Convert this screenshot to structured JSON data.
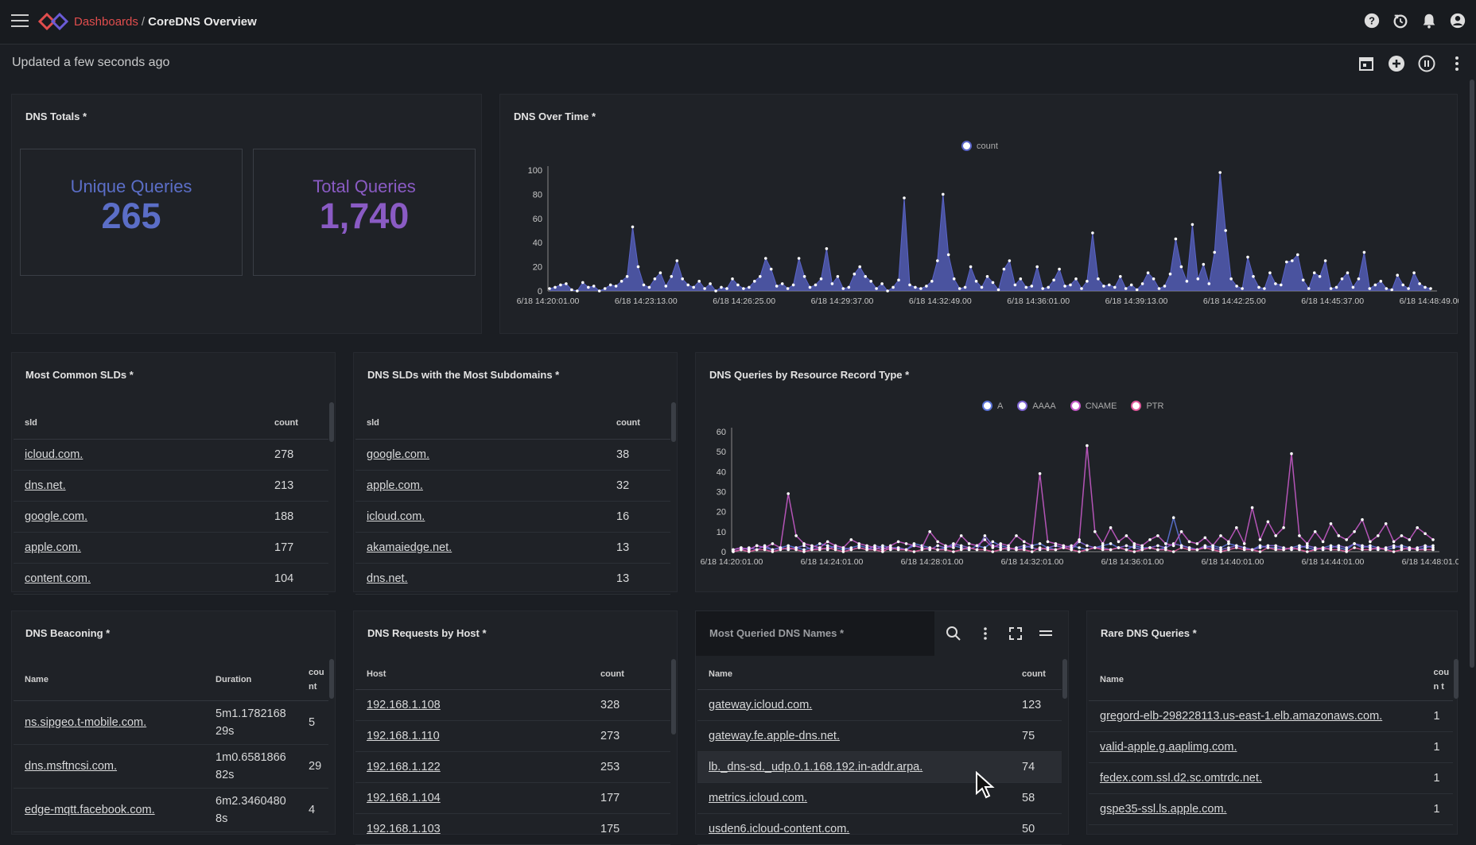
{
  "topbar": {
    "breadcrumb_parent": "Dashboards",
    "breadcrumb_sep": "/",
    "title": "CoreDNS Overview",
    "icons": [
      "help-icon",
      "history-icon",
      "bell-icon",
      "user-icon"
    ]
  },
  "subbar": {
    "updated_text": "Updated a few seconds ago",
    "icons": [
      "calendar-icon",
      "add-icon",
      "pause-icon",
      "more-icon"
    ]
  },
  "totals": {
    "title": "DNS Totals *",
    "unique_label": "Unique Queries",
    "unique_value": "265",
    "total_label": "Total Queries",
    "total_value": "1,740",
    "colors": {
      "unique": "#5b6ec7",
      "total": "#8a5bc4"
    }
  },
  "over_time": {
    "title": "DNS Over Time *",
    "legend": "count"
  },
  "rr_type": {
    "title": "DNS Queries by Resource Record Type *",
    "legend": [
      "A",
      "AAAA",
      "CNAME",
      "PTR"
    ]
  },
  "chart_data": [
    {
      "type": "area",
      "title": "DNS Over Time *",
      "xlabel": "",
      "ylabel": "",
      "ylim": [
        0,
        100
      ],
      "yticks": [
        0,
        20,
        40,
        60,
        80,
        100
      ],
      "xticks": [
        "6/18 14:20:01.00",
        "6/18 14:23:13.00",
        "6/18 14:26:25.00",
        "6/18 14:29:37.00",
        "6/18 14:32:49.00",
        "6/18 14:36:01.00",
        "6/18 14:39:13.00",
        "6/18 14:42:25.00",
        "6/18 14:45:37.00",
        "6/18 14:48:49.00"
      ],
      "series": [
        {
          "name": "count",
          "color": "#5a64c8",
          "values": [
            2,
            3,
            5,
            6,
            1,
            0,
            7,
            3,
            4,
            0,
            2,
            5,
            4,
            8,
            12,
            53,
            20,
            5,
            3,
            10,
            15,
            4,
            12,
            25,
            10,
            5,
            3,
            8,
            2,
            6,
            0,
            3,
            2,
            10,
            5,
            2,
            3,
            8,
            12,
            27,
            18,
            4,
            6,
            2,
            5,
            27,
            12,
            3,
            5,
            10,
            35,
            6,
            12,
            2,
            3,
            14,
            20,
            12,
            8,
            2,
            6,
            0,
            3,
            9,
            77,
            5,
            3,
            2,
            4,
            8,
            25,
            80,
            30,
            10,
            2,
            3,
            20,
            8,
            3,
            12,
            7,
            1,
            18,
            25,
            5,
            10,
            3,
            4,
            20,
            2,
            3,
            9,
            18,
            4,
            5,
            10,
            2,
            8,
            48,
            10,
            4,
            5,
            3,
            12,
            2,
            5,
            1,
            6,
            15,
            10,
            2,
            4,
            14,
            43,
            20,
            8,
            55,
            10,
            22,
            6,
            32,
            98,
            50,
            10,
            4,
            2,
            28,
            12,
            3,
            2,
            15,
            6,
            5,
            24,
            25,
            30,
            9,
            2,
            15,
            12,
            25,
            2,
            3,
            10,
            15,
            3,
            10,
            32,
            2,
            5,
            8,
            2,
            1,
            13,
            5,
            2,
            15,
            6,
            3,
            2
          ]
        }
      ]
    },
    {
      "type": "line",
      "title": "DNS Queries by Resource Record Type *",
      "ylim": [
        0,
        60
      ],
      "yticks": [
        0,
        10,
        20,
        30,
        40,
        50,
        60
      ],
      "xticks": [
        "6/18 14:20:01.00",
        "6/18 14:24:01.00",
        "6/18 14:28:01.00",
        "6/18 14:32:01.00",
        "6/18 14:36:01.00",
        "6/18 14:40:01.00",
        "6/18 14:44:01.00",
        "6/18 14:48:01.00"
      ],
      "series": [
        {
          "name": "A",
          "color": "#5b73d6",
          "values": [
            1,
            2,
            1,
            3,
            2,
            1,
            2,
            3,
            2,
            1,
            2,
            4,
            3,
            2,
            1,
            2,
            3,
            2,
            1,
            3,
            2,
            2,
            1,
            4,
            3,
            2,
            1,
            2,
            3,
            2,
            1,
            3,
            2,
            5,
            3,
            2,
            1,
            2,
            3,
            4,
            2,
            1,
            2,
            3,
            2,
            1,
            2,
            3,
            4,
            2,
            1,
            3,
            2,
            2,
            1,
            2,
            17,
            3,
            2,
            1,
            2,
            3,
            2,
            4,
            3,
            2,
            1,
            3,
            2,
            2,
            1,
            2,
            3,
            2,
            1,
            2,
            3,
            2,
            1,
            4,
            2,
            3,
            2,
            1,
            2,
            3,
            2,
            1,
            2,
            3
          ]
        },
        {
          "name": "AAAA",
          "color": "#7e64d2",
          "values": [
            0,
            1,
            2,
            1,
            3,
            1,
            2,
            1,
            2,
            3,
            1,
            2,
            1,
            3,
            2,
            1,
            2,
            1,
            3,
            2,
            1,
            2,
            1,
            3,
            2,
            1,
            3,
            2,
            4,
            3,
            2,
            1,
            8,
            3,
            2,
            1,
            2,
            3,
            2,
            1,
            2,
            3,
            2,
            1,
            5,
            3,
            2,
            2,
            1,
            2,
            3,
            2,
            1,
            2,
            3,
            2,
            4,
            3,
            2,
            1,
            3,
            2,
            1,
            2,
            3,
            2,
            1,
            2,
            3,
            3,
            2,
            1,
            2,
            3,
            2,
            1,
            2,
            3,
            2,
            4,
            3,
            2,
            1,
            2,
            3,
            2,
            1,
            2,
            3,
            2
          ]
        },
        {
          "name": "CNAME",
          "color": "#c45ac7",
          "values": [
            1,
            2,
            1,
            3,
            2,
            4,
            2,
            29,
            8,
            4,
            3,
            2,
            5,
            3,
            2,
            6,
            4,
            3,
            2,
            1,
            3,
            5,
            4,
            3,
            2,
            10,
            5,
            3,
            2,
            8,
            4,
            3,
            6,
            2,
            4,
            3,
            8,
            5,
            3,
            39,
            5,
            4,
            3,
            2,
            6,
            53,
            10,
            4,
            12,
            5,
            8,
            4,
            3,
            6,
            8,
            4,
            3,
            10,
            5,
            4,
            7,
            3,
            8,
            5,
            12,
            4,
            22,
            6,
            15,
            8,
            12,
            49,
            8,
            4,
            10,
            5,
            14,
            8,
            6,
            10,
            16,
            5,
            8,
            14,
            5,
            8,
            6,
            12,
            9,
            6
          ]
        },
        {
          "name": "PTR",
          "color": "#e05a9c",
          "values": [
            0,
            1,
            0,
            1,
            1,
            0,
            1,
            2,
            1,
            0,
            1,
            1,
            2,
            1,
            0,
            1,
            2,
            1,
            1,
            0,
            2,
            1,
            1,
            0,
            1,
            2,
            1,
            1,
            0,
            1,
            2,
            1,
            1,
            0,
            1,
            2,
            1,
            1,
            0,
            2,
            1,
            1,
            2,
            1,
            0,
            1,
            2,
            1,
            1,
            2,
            1,
            0,
            1,
            2,
            1,
            1,
            0,
            2,
            1,
            1,
            2,
            1,
            0,
            1,
            2,
            1,
            1,
            0,
            2,
            1,
            1,
            2,
            1,
            0,
            1,
            2,
            1,
            1,
            0,
            2,
            1,
            1,
            2,
            1,
            0,
            1,
            2,
            1,
            1,
            1
          ]
        }
      ]
    }
  ],
  "slds": {
    "title": "Most Common SLDs *",
    "col_sld": "sld",
    "col_count": "count",
    "rows": [
      [
        "icloud.com.",
        "278"
      ],
      [
        "dns.net.",
        "213"
      ],
      [
        "google.com.",
        "188"
      ],
      [
        "apple.com.",
        "177"
      ],
      [
        "content.com.",
        "104"
      ]
    ]
  },
  "subdomains": {
    "title": "DNS SLDs with the Most Subdomains *",
    "col_sld": "sld",
    "col_count": "count",
    "rows": [
      [
        "google.com.",
        "38"
      ],
      [
        "apple.com.",
        "32"
      ],
      [
        "icloud.com.",
        "16"
      ],
      [
        "akamaiedge.net.",
        "13"
      ],
      [
        "dns.net.",
        "13"
      ]
    ]
  },
  "beaconing": {
    "title": "DNS Beaconing *",
    "col_name": "Name",
    "col_duration": "Duration",
    "col_count": "cou nt",
    "rows": [
      [
        "ns.sipgeo.t-mobile.com.",
        "5m1.1782168 29s",
        "5"
      ],
      [
        "dns.msftncsi.com.",
        "1m0.6581866 82s",
        "29"
      ],
      [
        "edge-mqtt.facebook.com.",
        "6m2.3460480 8s",
        "4"
      ]
    ]
  },
  "requests_by_host": {
    "title": "DNS Requests by Host *",
    "col_host": "Host",
    "col_count": "count",
    "rows": [
      [
        "192.168.1.108",
        "328"
      ],
      [
        "192.168.1.110",
        "273"
      ],
      [
        "192.168.1.122",
        "253"
      ],
      [
        "192.168.1.104",
        "177"
      ],
      [
        "192.168.1.103",
        "175"
      ]
    ]
  },
  "most_queried": {
    "title": "Most Queried DNS Names *",
    "col_name": "Name",
    "col_count": "count",
    "rows": [
      [
        "gateway.icloud.com.",
        "123"
      ],
      [
        "gateway.fe.apple-dns.net.",
        "75"
      ],
      [
        "lb._dns-sd._udp.0.1.168.192.in-addr.arpa.",
        "74"
      ],
      [
        "metrics.icloud.com.",
        "58"
      ],
      [
        "usden6.icloud-content.com.",
        "50"
      ]
    ],
    "header_icons": [
      "search-icon",
      "more-vertical-icon",
      "fullscreen-icon",
      "drag-handle-icon"
    ]
  },
  "rare": {
    "title": "Rare DNS Queries *",
    "col_name": "Name",
    "col_count": "coun t",
    "rows": [
      [
        "gregord-elb-298228113.us-east-1.elb.amazonaws.com.",
        "1"
      ],
      [
        "valid-apple.g.aaplimg.com.",
        "1"
      ],
      [
        "fedex.com.ssl.d2.sc.omtrdc.net.",
        "1"
      ],
      [
        "gspe35-ssl.ls.apple.com.",
        "1"
      ]
    ]
  }
}
